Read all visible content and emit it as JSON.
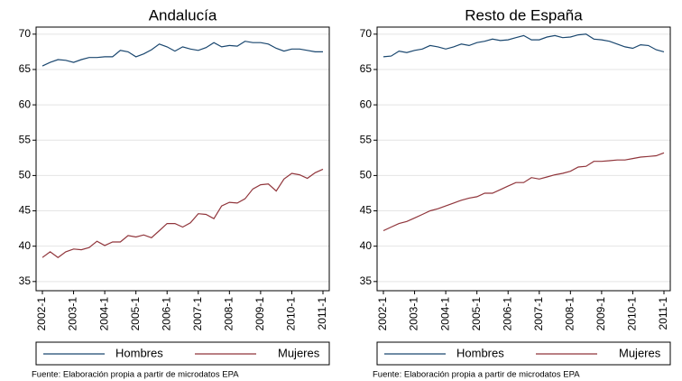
{
  "chart_data": [
    {
      "type": "line",
      "title": "Andalucía",
      "categories": [
        "2002-1",
        null,
        null,
        null,
        "2003-1",
        null,
        null,
        null,
        "2004-1",
        null,
        null,
        null,
        "2005-1",
        null,
        null,
        null,
        "2006-1",
        null,
        null,
        null,
        "2007-1",
        null,
        null,
        null,
        "2008-1",
        null,
        null,
        null,
        "2009-1",
        null,
        null,
        null,
        "2010-1",
        null,
        null,
        null,
        "2011-1"
      ],
      "series": [
        {
          "name": "Hombres",
          "color": "#1a476f",
          "values": [
            65.5,
            66.0,
            66.4,
            66.3,
            66.0,
            66.4,
            66.7,
            66.7,
            66.8,
            66.8,
            67.7,
            67.5,
            66.8,
            67.2,
            67.8,
            68.6,
            68.2,
            67.6,
            68.2,
            67.9,
            67.7,
            68.1,
            68.8,
            68.2,
            68.4,
            68.3,
            69.0,
            68.8,
            68.8,
            68.6,
            68.0,
            67.6,
            67.9,
            67.9,
            67.7,
            67.5,
            67.5
          ]
        },
        {
          "name": "Mujeres",
          "color": "#90353b",
          "values": [
            38.4,
            39.2,
            38.4,
            39.2,
            39.6,
            39.5,
            39.8,
            40.7,
            40.1,
            40.6,
            40.6,
            41.5,
            41.3,
            41.6,
            41.2,
            42.2,
            43.2,
            43.2,
            42.7,
            43.3,
            44.6,
            44.5,
            43.9,
            45.7,
            46.2,
            46.1,
            46.7,
            48.1,
            48.7,
            48.8,
            47.8,
            49.5,
            50.3,
            50.1,
            49.6,
            50.4,
            50.9
          ]
        }
      ],
      "ylim": [
        33.7,
        71
      ],
      "yticks": [
        35,
        40,
        45,
        50,
        55,
        60,
        65,
        70
      ],
      "grid": true,
      "note": "Fuente: Elaboración propia a partir de microdatos EPA"
    },
    {
      "type": "line",
      "title": "Resto de España",
      "categories": [
        "2002-1",
        null,
        null,
        null,
        "2003-1",
        null,
        null,
        null,
        "2004-1",
        null,
        null,
        null,
        "2005-1",
        null,
        null,
        null,
        "2006-1",
        null,
        null,
        null,
        "2007-1",
        null,
        null,
        null,
        "2008-1",
        null,
        null,
        null,
        "2009-1",
        null,
        null,
        null,
        "2010-1",
        null,
        null,
        null,
        "2011-1"
      ],
      "series": [
        {
          "name": "Hombres",
          "color": "#1a476f",
          "values": [
            66.8,
            66.9,
            67.6,
            67.4,
            67.7,
            67.9,
            68.4,
            68.2,
            67.9,
            68.2,
            68.6,
            68.4,
            68.8,
            69.0,
            69.3,
            69.1,
            69.2,
            69.5,
            69.8,
            69.2,
            69.2,
            69.6,
            69.8,
            69.5,
            69.6,
            69.9,
            70.0,
            69.3,
            69.2,
            69.0,
            68.6,
            68.2,
            68.0,
            68.5,
            68.4,
            67.8,
            67.5
          ]
        },
        {
          "name": "Mujeres",
          "color": "#90353b",
          "values": [
            42.2,
            42.7,
            43.2,
            43.5,
            44.0,
            44.5,
            45.0,
            45.3,
            45.7,
            46.1,
            46.5,
            46.8,
            47.0,
            47.5,
            47.5,
            48.0,
            48.5,
            49.0,
            49.0,
            49.7,
            49.5,
            49.8,
            50.1,
            50.3,
            50.6,
            51.2,
            51.3,
            52.0,
            52.0,
            52.1,
            52.2,
            52.2,
            52.4,
            52.6,
            52.7,
            52.8,
            53.2
          ]
        }
      ],
      "ylim": [
        33.7,
        71
      ],
      "yticks": [
        35,
        40,
        45,
        50,
        55,
        60,
        65,
        70
      ],
      "grid": true,
      "note": "Fuente: Elaboración propia a partir de microdatos EPA"
    }
  ]
}
